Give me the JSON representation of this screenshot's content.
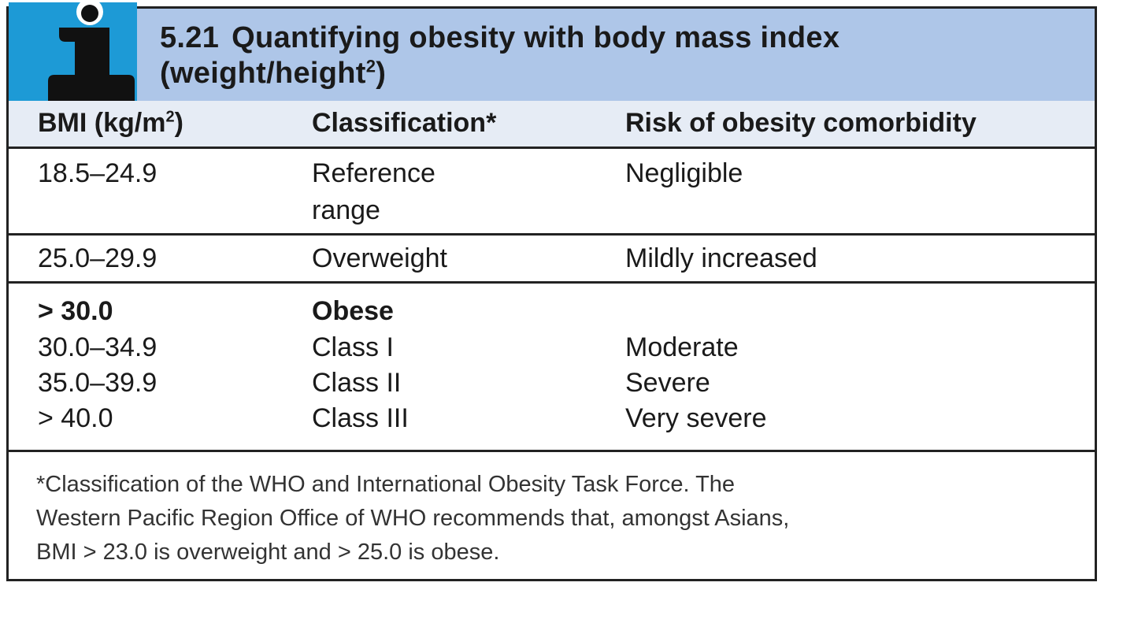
{
  "header": {
    "number": "5.21",
    "title": "Quantifying obesity with body mass index",
    "title_line2": "(weight/height",
    "title_sup": "2",
    "title_close": ")"
  },
  "columns": {
    "bmi": "BMI (kg/m",
    "bmi_sup": "2",
    "bmi_close": ")",
    "classification": "Classification*",
    "risk": "Risk of obesity comorbidity"
  },
  "rows": [
    {
      "bmi": "18.5–24.9",
      "classification_line1": "Reference",
      "classification_line2": "range",
      "risk": "Negligible"
    },
    {
      "bmi": "25.0–29.9",
      "classification": "Overweight",
      "risk": "Mildly increased"
    },
    {
      "bmi": "> 30.0",
      "classification": "Obese",
      "sub": [
        {
          "bmi": "30.0–34.9",
          "classification": "Class I",
          "risk": "Moderate"
        },
        {
          "bmi": "35.0–39.9",
          "classification": "Class II",
          "risk": "Severe"
        },
        {
          "bmi": "> 40.0",
          "classification": "Class III",
          "risk": "Very severe"
        }
      ]
    }
  ],
  "footnote": {
    "line1": "*Classification of the WHO and International Obesity Task Force. The",
    "line2": "Western Pacific Region Office of WHO recommends that, amongst Asians,",
    "line3": "BMI > 23.0 is overweight and > 25.0 is obese."
  },
  "colors": {
    "header_bg": "#aec6e8",
    "icon_bg": "#1d9ad6",
    "colhead_bg": "#e6ecf5"
  },
  "icons": {
    "info": "info-i-icon"
  }
}
